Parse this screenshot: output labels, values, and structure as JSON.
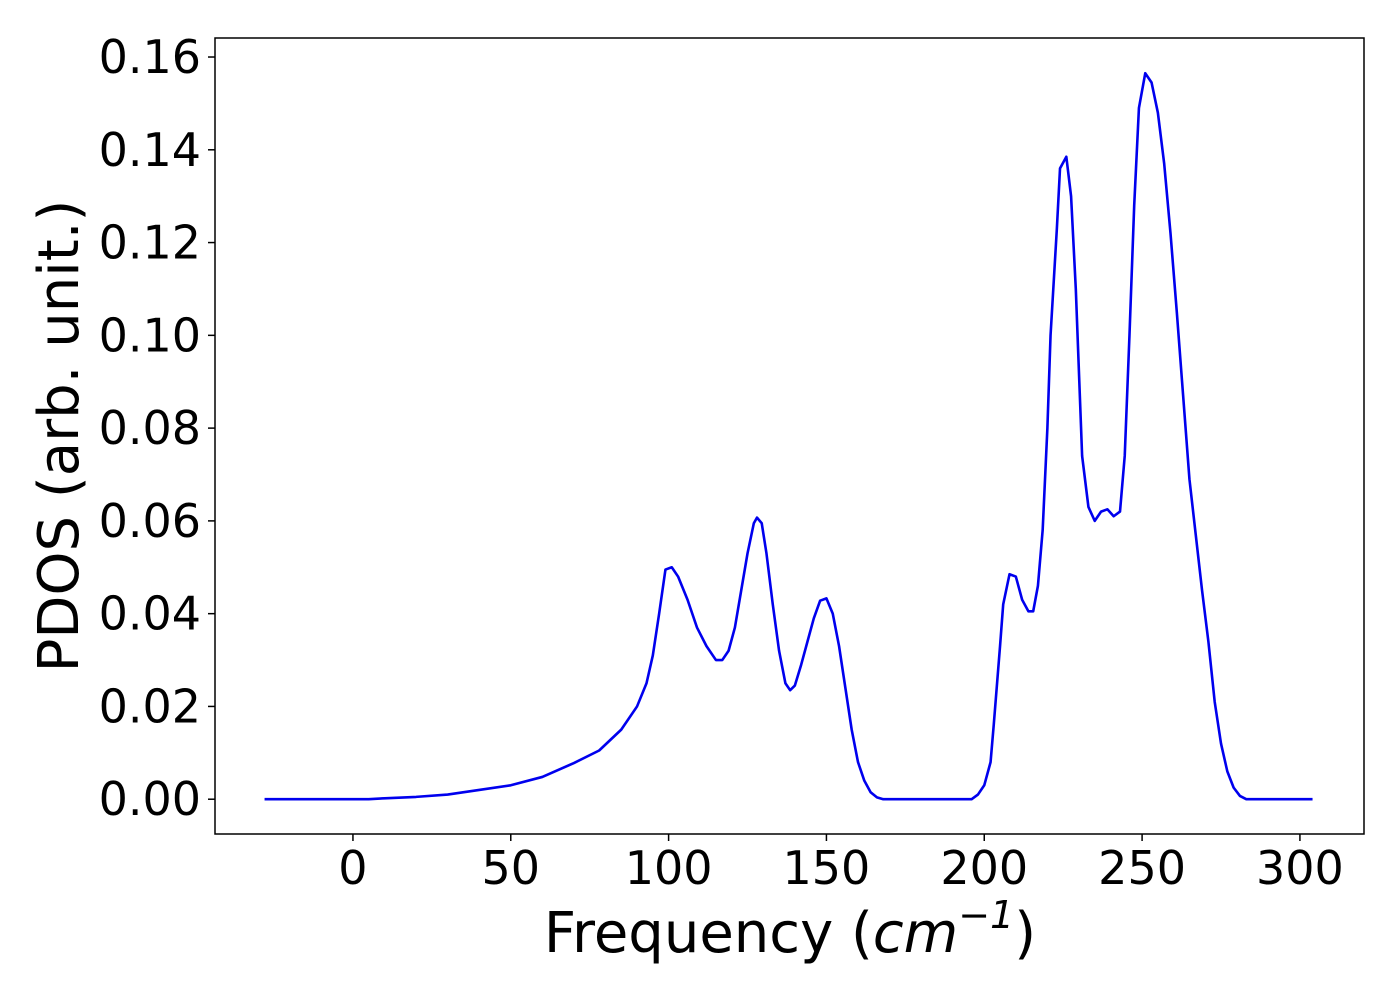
{
  "chart_data": {
    "type": "line",
    "xlabel": {
      "text": "Frequency (",
      "math": "cm",
      "sup": "−1",
      "close": ")"
    },
    "ylabel": "PDOS (arb. unit.)",
    "xlim": [
      -43.7,
      320.3
    ],
    "ylim": [
      -0.0075,
      0.1641
    ],
    "xticks": [
      0,
      50,
      100,
      150,
      200,
      250,
      300
    ],
    "yticks": [
      {
        "value": 0,
        "label": "0.00"
      },
      {
        "value": 0.02,
        "label": "0.02"
      },
      {
        "value": 0.04,
        "label": "0.04"
      },
      {
        "value": 0.06,
        "label": "0.06"
      },
      {
        "value": 0.08,
        "label": "0.08"
      },
      {
        "value": 0.1,
        "label": "0.10"
      },
      {
        "value": 0.12,
        "label": "0.12"
      },
      {
        "value": 0.14,
        "label": "0.14"
      },
      {
        "value": 0.16,
        "label": "0.16"
      }
    ],
    "grid": false,
    "x": [
      -28,
      5,
      10,
      20,
      30,
      40,
      50,
      60,
      70,
      78,
      85,
      90,
      93,
      95,
      97,
      99,
      101,
      103,
      106,
      109,
      112,
      115,
      117,
      119,
      121,
      123,
      125,
      127,
      128,
      129.5,
      131,
      133,
      135,
      137,
      138.5,
      140,
      142,
      144,
      146,
      148,
      150,
      152,
      154,
      156,
      158,
      160,
      162,
      164,
      166,
      168,
      196,
      198,
      200,
      202,
      203,
      205,
      206,
      208,
      210,
      212,
      214,
      215.5,
      217,
      218.5,
      220,
      221,
      223,
      224,
      226,
      227.5,
      229,
      231,
      233,
      235,
      237,
      239,
      241,
      243,
      244.5,
      246,
      247.5,
      249,
      251,
      253,
      255,
      257,
      259,
      261,
      263,
      265,
      267,
      269,
      271,
      273,
      275,
      277,
      279,
      281,
      283,
      304
    ],
    "series": [
      {
        "name": "PDOS",
        "color": "#0000ee",
        "values": [
          0,
          0,
          0.0002,
          0.0005,
          0.001,
          0.002,
          0.003,
          0.0048,
          0.0078,
          0.0105,
          0.015,
          0.02,
          0.025,
          0.031,
          0.04,
          0.0495,
          0.05,
          0.048,
          0.043,
          0.037,
          0.033,
          0.03,
          0.03,
          0.032,
          0.037,
          0.045,
          0.053,
          0.0595,
          0.0607,
          0.0595,
          0.053,
          0.042,
          0.032,
          0.025,
          0.0235,
          0.0245,
          0.029,
          0.034,
          0.039,
          0.0428,
          0.0433,
          0.04,
          0.033,
          0.024,
          0.015,
          0.008,
          0.004,
          0.0015,
          0.0004,
          0,
          0,
          0.001,
          0.003,
          0.008,
          0.016,
          0.033,
          0.042,
          0.0485,
          0.048,
          0.043,
          0.0405,
          0.0405,
          0.046,
          0.058,
          0.08,
          0.1,
          0.123,
          0.136,
          0.1385,
          0.13,
          0.11,
          0.074,
          0.063,
          0.06,
          0.062,
          0.0625,
          0.061,
          0.062,
          0.074,
          0.1,
          0.128,
          0.149,
          0.1565,
          0.1545,
          0.148,
          0.137,
          0.122,
          0.105,
          0.087,
          0.069,
          0.057,
          0.045,
          0.034,
          0.021,
          0.012,
          0.006,
          0.0025,
          0.0007,
          0,
          0
        ]
      }
    ]
  }
}
